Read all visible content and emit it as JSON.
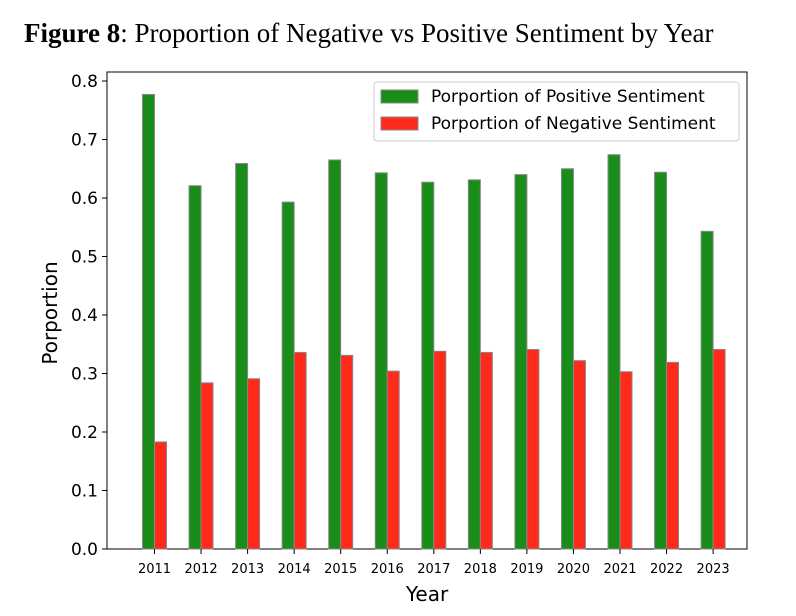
{
  "figure": {
    "label": "Figure 8",
    "caption": ": Proportion of Negative vs Positive Sentiment by Year"
  },
  "chart_data": {
    "type": "bar",
    "categories": [
      "2011",
      "2012",
      "2013",
      "2014",
      "2015",
      "2016",
      "2017",
      "2018",
      "2019",
      "2020",
      "2021",
      "2022",
      "2023"
    ],
    "series": [
      {
        "name": "Porportion of Positive Sentiment",
        "color": "#1a8c1a",
        "values": [
          0.777,
          0.621,
          0.659,
          0.593,
          0.665,
          0.643,
          0.627,
          0.631,
          0.64,
          0.65,
          0.674,
          0.644,
          0.543
        ]
      },
      {
        "name": "Porportion of Negative Sentiment",
        "color": "#ff2a1a",
        "values": [
          0.183,
          0.284,
          0.291,
          0.336,
          0.331,
          0.304,
          0.338,
          0.336,
          0.341,
          0.322,
          0.303,
          0.319,
          0.341
        ]
      }
    ],
    "xlabel": "Year",
    "ylabel": "Porportion",
    "ylim": [
      0,
      0.8
    ],
    "yticks": [
      "0.0",
      "0.1",
      "0.2",
      "0.3",
      "0.4",
      "0.5",
      "0.6",
      "0.7",
      "0.8"
    ],
    "legend_position": "top-right",
    "grid": false
  }
}
